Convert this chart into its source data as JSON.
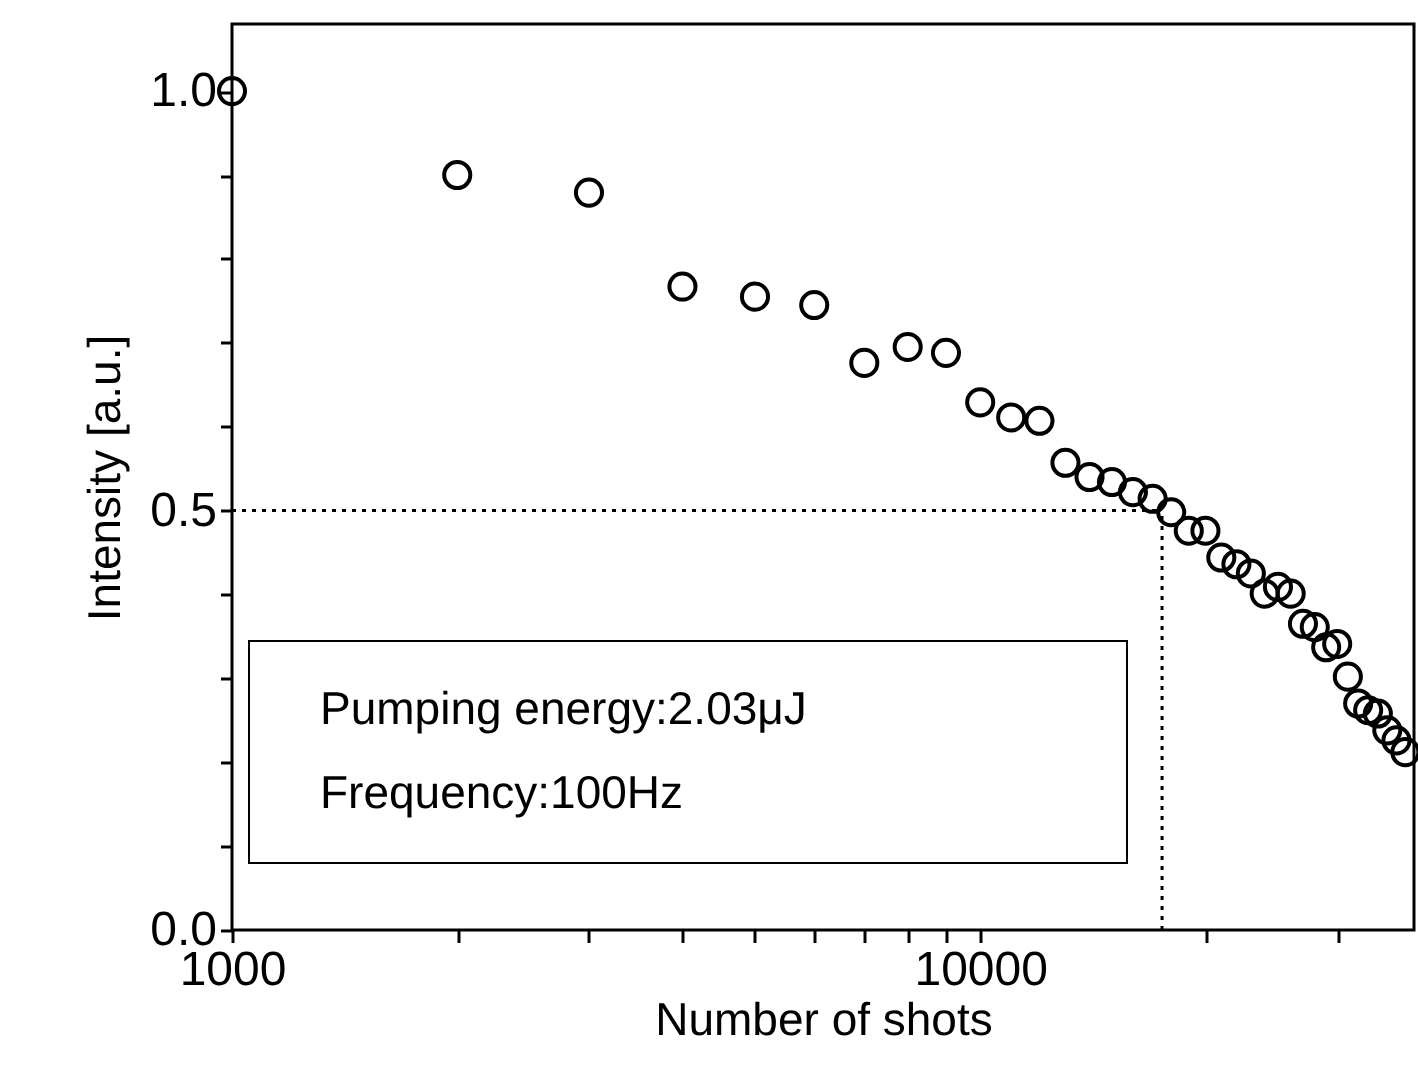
{
  "chart_data": {
    "type": "scatter",
    "xlabel": "Number of shots",
    "ylabel": "Intensity [a.u.]",
    "log": "x",
    "grid": false,
    "marker": "circle",
    "xlim": [
      1000,
      38000
    ],
    "ylim": [
      0,
      1.08
    ],
    "xticks": [
      1000,
      {
        "value": 2000,
        "label": null
      },
      {
        "value": 3000,
        "label": null
      },
      {
        "value": 4000,
        "label": null
      },
      {
        "value": 5000,
        "label": null
      },
      {
        "value": 6000,
        "label": null
      },
      {
        "value": 7000,
        "label": null
      },
      {
        "value": 8000,
        "label": null
      },
      {
        "value": 9000,
        "label": null
      },
      10000,
      {
        "value": 20000,
        "label": null
      },
      {
        "value": 30000,
        "label": null
      }
    ],
    "yticks": [
      {
        "value": 0,
        "label": "0.0"
      },
      {
        "value": 0.1,
        "label": null
      },
      {
        "value": 0.2,
        "label": null
      },
      {
        "value": 0.3,
        "label": null
      },
      {
        "value": 0.4,
        "label": null
      },
      0.5,
      {
        "value": 0.6,
        "label": null
      },
      {
        "value": 0.7,
        "label": null
      },
      {
        "value": 0.8,
        "label": null
      },
      {
        "value": 0.9,
        "label": null
      },
      {
        "value": 1,
        "label": "1.0"
      }
    ],
    "series": [
      {
        "color": "#000000",
        "x": [
          1000,
          2000,
          3000,
          4000,
          5000,
          6000,
          7000,
          8000,
          9000,
          10000,
          11000,
          12000,
          13000,
          14000,
          15000,
          16000,
          17000,
          18000,
          19000,
          20000,
          21000,
          22000,
          23000,
          24000,
          25000,
          26000,
          27000,
          28000,
          29000,
          30000,
          31000,
          32000,
          33000,
          34000,
          35000,
          36000,
          37000
        ],
        "values": [
          1.0,
          0.9,
          0.879,
          0.767,
          0.755,
          0.745,
          0.676,
          0.695,
          0.688,
          0.629,
          0.611,
          0.607,
          0.557,
          0.54,
          0.534,
          0.522,
          0.514,
          0.498,
          0.476,
          0.476,
          0.444,
          0.436,
          0.425,
          0.401,
          0.409,
          0.401,
          0.365,
          0.361,
          0.337,
          0.341,
          0.302,
          0.27,
          0.262,
          0.258,
          0.238,
          0.226,
          0.212
        ]
      }
    ],
    "ref_lines": [
      {
        "axis": "y",
        "value": 0.5,
        "line_style": "dotted"
      },
      {
        "axis": "x",
        "value": 17500,
        "line_style": "dotted"
      }
    ],
    "annotations": [
      "Pumping energy:2.03μJ",
      "Frequency:100Hz"
    ]
  }
}
